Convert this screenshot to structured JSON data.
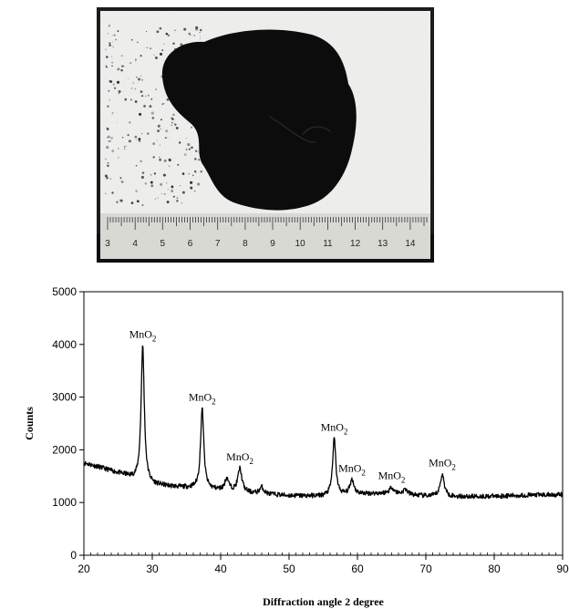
{
  "photo": {
    "ruler_numbers": [
      "3",
      "4",
      "5",
      "6",
      "7",
      "8",
      "9",
      "10",
      "11",
      "12",
      "13",
      "14"
    ]
  },
  "chart_data": {
    "type": "line",
    "xlabel": "Diffraction angle 2   degree",
    "ylabel": "Counts",
    "xlim": [
      20,
      90
    ],
    "ylim": [
      0,
      5000
    ],
    "x_ticks": [
      20,
      30,
      40,
      50,
      60,
      70,
      80,
      90
    ],
    "y_ticks": [
      0,
      1000,
      2000,
      3000,
      4000,
      5000
    ],
    "grid": false,
    "legend": "none",
    "line_color": "#000000",
    "baseline_points": [
      [
        20,
        1750
      ],
      [
        22,
        1680
      ],
      [
        24,
        1600
      ],
      [
        26,
        1520
      ],
      [
        27.5,
        1440
      ],
      [
        30,
        1340
      ],
      [
        33,
        1300
      ],
      [
        36,
        1270
      ],
      [
        40,
        1230
      ],
      [
        45,
        1170
      ],
      [
        50,
        1130
      ],
      [
        55,
        1120
      ],
      [
        60,
        1160
      ],
      [
        65,
        1180
      ],
      [
        70,
        1120
      ],
      [
        75,
        1110
      ],
      [
        80,
        1120
      ],
      [
        85,
        1140
      ],
      [
        90,
        1150
      ]
    ],
    "peaks": [
      {
        "x": 28.6,
        "y": 3970,
        "label": "MnO2",
        "label_main": "MnO",
        "label_sub": "2"
      },
      {
        "x": 37.3,
        "y": 2780,
        "label": "MnO2",
        "label_main": "MnO",
        "label_sub": "2"
      },
      {
        "x": 40.9,
        "y": 1450
      },
      {
        "x": 42.8,
        "y": 1640,
        "label": "MnO2",
        "label_main": "MnO",
        "label_sub": "2"
      },
      {
        "x": 46.0,
        "y": 1290
      },
      {
        "x": 56.6,
        "y": 2210,
        "label": "MnO2",
        "label_main": "MnO",
        "label_sub": "2"
      },
      {
        "x": 59.2,
        "y": 1430,
        "label": "MnO2",
        "label_main": "MnO",
        "label_sub": "2"
      },
      {
        "x": 65.0,
        "y": 1290,
        "label": "MnO2",
        "label_main": "MnO",
        "label_sub": "2"
      },
      {
        "x": 67.0,
        "y": 1250
      },
      {
        "x": 72.4,
        "y": 1530,
        "label": "MnO2",
        "label_main": "MnO",
        "label_sub": "2"
      }
    ]
  }
}
